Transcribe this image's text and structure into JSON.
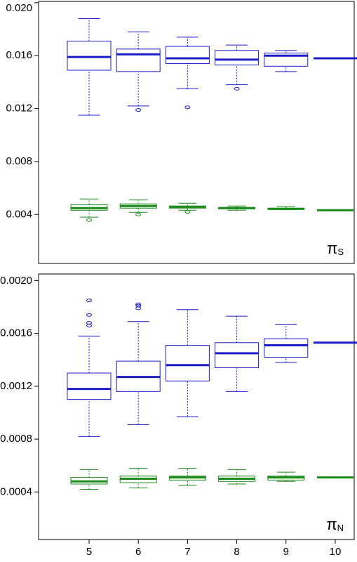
{
  "chart_data": [
    {
      "type": "box",
      "label": "π",
      "label_subscript": "S",
      "ylim": [
        0.0003,
        0.0201
      ],
      "yticks": [
        0.004,
        0.008,
        0.012,
        0.016,
        {
          "value": 0.02,
          "label": "0.020"
        }
      ],
      "series": [
        {
          "color": "#1c1cc8",
          "boxes": [
            {
              "whislo": 0.0115,
              "q1": 0.0149,
              "med": 0.0159,
              "q3": 0.0171,
              "whishi": 0.0188,
              "fliers": []
            },
            {
              "whislo": 0.0122,
              "q1": 0.0148,
              "med": 0.0161,
              "q3": 0.0165,
              "whishi": 0.0178,
              "fliers": [
                0.0119
              ]
            },
            {
              "whislo": 0.0135,
              "q1": 0.0154,
              "med": 0.0158,
              "q3": 0.0167,
              "whishi": 0.0174,
              "fliers": [
                0.0121
              ]
            },
            {
              "whislo": 0.0138,
              "q1": 0.0153,
              "med": 0.0157,
              "q3": 0.0164,
              "whishi": 0.0168,
              "fliers": [
                0.0135
              ]
            },
            {
              "whislo": 0.0148,
              "q1": 0.0152,
              "med": 0.016,
              "q3": 0.0162,
              "whishi": 0.0164,
              "fliers": []
            },
            {
              "whislo": 0.0158,
              "q1": 0.0158,
              "med": 0.0158,
              "q3": 0.0158,
              "whishi": 0.0158,
              "fliers": []
            }
          ]
        },
        {
          "color": "#1a8a1a",
          "boxes": [
            {
              "whislo": 0.0038,
              "q1": 0.00432,
              "med": 0.00448,
              "q3": 0.00474,
              "whishi": 0.00517,
              "fliers": [
                0.00358
              ]
            },
            {
              "whislo": 0.00416,
              "q1": 0.00448,
              "med": 0.00464,
              "q3": 0.0048,
              "whishi": 0.0051,
              "fliers": [
                0.004
              ]
            },
            {
              "whislo": 0.00432,
              "q1": 0.00448,
              "med": 0.00458,
              "q3": 0.00464,
              "whishi": 0.00485,
              "fliers": [
                0.0042
              ]
            },
            {
              "whislo": 0.00432,
              "q1": 0.00442,
              "med": 0.00448,
              "q3": 0.00453,
              "whishi": 0.00464,
              "fliers": []
            },
            {
              "whislo": 0.00437,
              "q1": 0.0044,
              "med": 0.00442,
              "q3": 0.00448,
              "whishi": 0.0046,
              "fliers": []
            },
            {
              "whislo": 0.00432,
              "q1": 0.00432,
              "med": 0.00432,
              "q3": 0.00432,
              "whishi": 0.00432,
              "fliers": []
            }
          ]
        }
      ]
    },
    {
      "type": "box",
      "label": "π",
      "label_subscript": "N",
      "categories": [
        "5",
        "6",
        "7",
        "8",
        "9",
        "10"
      ],
      "ylim": [
        4e-05,
        0.00205
      ],
      "yticks": [
        0.0004,
        0.0008,
        0.0012,
        0.0016,
        {
          "value": 0.002,
          "label": "0.0020"
        }
      ],
      "series": [
        {
          "color": "#1c1cc8",
          "boxes": [
            {
              "whislo": 0.00082,
              "q1": 0.0011,
              "med": 0.00118,
              "q3": 0.0013,
              "whishi": 0.00158,
              "fliers": [
                0.00185,
                0.00174,
                0.00168,
                0.00166
              ]
            },
            {
              "whislo": 0.00091,
              "q1": 0.00116,
              "med": 0.00127,
              "q3": 0.00139,
              "whishi": 0.00169,
              "fliers": [
                0.00182,
                0.00181,
                0.00179
              ]
            },
            {
              "whislo": 0.00097,
              "q1": 0.00124,
              "med": 0.00136,
              "q3": 0.00151,
              "whishi": 0.00178,
              "fliers": []
            },
            {
              "whislo": 0.00116,
              "q1": 0.00134,
              "med": 0.00145,
              "q3": 0.00153,
              "whishi": 0.00173,
              "fliers": []
            },
            {
              "whislo": 0.00138,
              "q1": 0.00142,
              "med": 0.00151,
              "q3": 0.00156,
              "whishi": 0.00167,
              "fliers": []
            },
            {
              "whislo": 0.00153,
              "q1": 0.00153,
              "med": 0.00153,
              "q3": 0.00153,
              "whishi": 0.00153,
              "fliers": []
            }
          ]
        },
        {
          "color": "#1a8a1a",
          "boxes": [
            {
              "whislo": 0.00042,
              "q1": 0.00046,
              "med": 0.00048,
              "q3": 0.00051,
              "whishi": 0.00057,
              "fliers": []
            },
            {
              "whislo": 0.00043,
              "q1": 0.00047,
              "med": 0.0005,
              "q3": 0.00052,
              "whishi": 0.00058,
              "fliers": []
            },
            {
              "whislo": 0.00045,
              "q1": 0.00049,
              "med": 0.00051,
              "q3": 0.00052,
              "whishi": 0.00058,
              "fliers": []
            },
            {
              "whislo": 0.00046,
              "q1": 0.00048,
              "med": 0.0005,
              "q3": 0.00052,
              "whishi": 0.00057,
              "fliers": []
            },
            {
              "whislo": 0.00048,
              "q1": 0.00049,
              "med": 0.00051,
              "q3": 0.00052,
              "whishi": 0.00055,
              "fliers": []
            },
            {
              "whislo": 0.00051,
              "q1": 0.00051,
              "med": 0.00051,
              "q3": 0.00051,
              "whishi": 0.00051,
              "fliers": []
            }
          ]
        }
      ]
    }
  ]
}
